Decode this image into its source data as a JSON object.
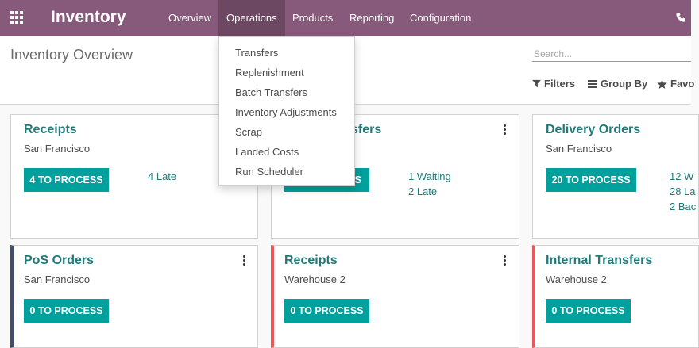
{
  "app": {
    "title": "Inventory"
  },
  "nav": {
    "items": [
      {
        "label": "Overview"
      },
      {
        "label": "Operations"
      },
      {
        "label": "Products"
      },
      {
        "label": "Reporting"
      },
      {
        "label": "Configuration"
      }
    ]
  },
  "operations_menu": {
    "items": [
      {
        "label": "Transfers"
      },
      {
        "label": "Replenishment"
      },
      {
        "label": "Batch Transfers"
      },
      {
        "label": "Inventory Adjustments"
      },
      {
        "label": "Scrap"
      },
      {
        "label": "Landed Costs"
      },
      {
        "label": "Run Scheduler"
      }
    ]
  },
  "control_panel": {
    "breadcrumb": "Inventory Overview",
    "search_placeholder": "Search...",
    "filters_label": "Filters",
    "groupby_label": "Group By",
    "favorites_label": "Favo"
  },
  "cards": [
    {
      "title": "Receipts",
      "subtitle": "San Francisco",
      "button": "4 TO PROCESS",
      "links": [
        "4 Late"
      ]
    },
    {
      "title": "sfers",
      "subtitle": "",
      "button": "S",
      "links": [
        "1 Waiting",
        "2 Late"
      ]
    },
    {
      "title": "Delivery Orders",
      "subtitle": "San Francisco",
      "button": "20 TO PROCESS",
      "links": [
        "12 W",
        "28 La",
        "2 Bac"
      ]
    },
    {
      "title": "PoS Orders",
      "subtitle": "San Francisco",
      "button": "0 TO PROCESS",
      "links": []
    },
    {
      "title": "Receipts",
      "subtitle": "Warehouse 2",
      "button": "0 TO PROCESS",
      "links": []
    },
    {
      "title": "Internal Transfers",
      "subtitle": "Warehouse 2",
      "button": "0 TO PROCESS",
      "links": []
    }
  ],
  "colors": {
    "navbar": "#875a7b",
    "navbar_active": "#6d4862",
    "accent": "#00a09d",
    "title": "#1f7a79",
    "pos_border": "#3f4f6b",
    "warehouse2_border": "#e8595a"
  },
  "icons": [
    "apps-grid-icon",
    "phone-icon",
    "filter-icon",
    "group-by-icon",
    "star-icon",
    "kebab-menu-icon"
  ]
}
